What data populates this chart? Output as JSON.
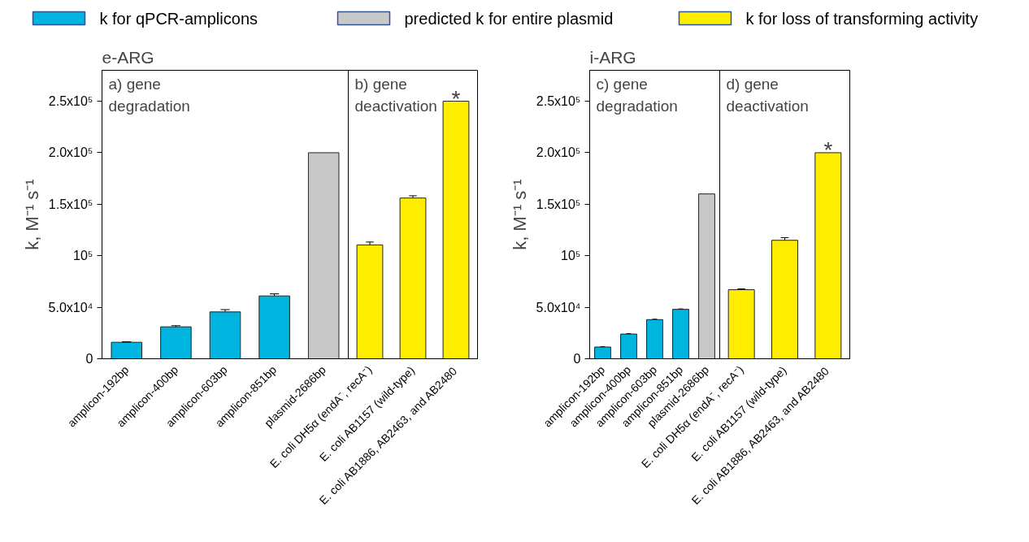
{
  "chart_data": [
    {
      "type": "bar",
      "title": "e-ARG",
      "ylabel": "k, M⁻¹ s⁻¹",
      "categories": [
        "amplicon-192bp",
        "amplicon-400bp",
        "amplicon-603bp",
        "amplicon-851bp",
        "plasmid-2686bp"
      ],
      "series": [
        {
          "name": "k for qPCR-amplicons",
          "color": "#00b4e0",
          "values": [
            16000,
            31000,
            45500,
            61000,
            null
          ],
          "errors": [
            500,
            1100,
            2200,
            2000,
            null
          ]
        },
        {
          "name": "predicted k for entire plasmid",
          "color": "#c8c8c8",
          "values": [
            null,
            null,
            null,
            null,
            200000
          ]
        }
      ],
      "ylim": [
        0,
        280000
      ],
      "yticks": [
        0,
        {
          "value": 50000,
          "label": "5.0x10⁴"
        },
        {
          "value": 100000,
          "label": "10⁵"
        },
        {
          "value": 150000,
          "label": "1.5x10⁵"
        },
        {
          "value": 200000,
          "label": "2.0x10⁵"
        },
        {
          "value": 250000,
          "label": "2.5x10⁵"
        }
      ],
      "annotations": [
        "a) gene degradation"
      ],
      "legend": "top",
      "grid": false
    },
    {
      "type": "bar",
      "categories": [
        "E. coli DH5α (endA⁻, recA⁻)",
        "E. coli AB1157 (wild-type)",
        "E. coli AB1886, AB2463, and AB2480"
      ],
      "series": [
        {
          "name": "k for loss of transforming activity",
          "color": "#ffed00",
          "values": [
            110500,
            156000,
            250000
          ],
          "errors": [
            2800,
            2200,
            null
          ]
        }
      ],
      "ylim": [
        0,
        280000
      ],
      "tick_labels": "x",
      "annotations": [
        "b) gene deactivation",
        {
          "text": "*",
          "x": "E. coli AB1886, AB2463, and AB2480",
          "y": 250000
        }
      ],
      "legend": "top"
    },
    {
      "type": "bar",
      "title": "i-ARG",
      "ylabel": "k, M⁻¹ s⁻¹",
      "categories": [
        "amplicon-192bp",
        "amplicon-400bp",
        "amplicon-603bp",
        "amplicon-851bp",
        "plasmid-2686bp"
      ],
      "series": [
        {
          "color": "#00b4e0",
          "values": [
            11400,
            24000,
            38000,
            48000,
            null
          ],
          "errors": [
            300,
            400,
            400,
            400,
            null
          ]
        },
        {
          "color": "#c8c8c8",
          "values": [
            null,
            null,
            null,
            null,
            160000
          ]
        }
      ],
      "ylim": [
        0,
        280000
      ],
      "yticks": [
        0,
        {
          "value": 50000,
          "label": "5.0x10⁴"
        },
        {
          "value": 100000,
          "label": "10⁵"
        },
        {
          "value": 150000,
          "label": "1.5x10⁵"
        },
        {
          "value": 200000,
          "label": "2.0x10⁵"
        },
        {
          "value": 250000,
          "label": "2.5x10⁵"
        }
      ],
      "annotations": [
        "c) gene degradation"
      ],
      "grid": false
    },
    {
      "type": "bar",
      "categories": [
        "E. coli DH5α (endA⁻, recA⁻)",
        "E. coli AB1157 (wild-type)",
        "E. coli AB1886, AB2463, and AB2480"
      ],
      "series": [
        {
          "color": "#ffed00",
          "values": [
            67000,
            115000,
            200000
          ],
          "errors": [
            800,
            2500,
            null
          ]
        }
      ],
      "ylim": [
        0,
        280000
      ],
      "tick_labels": "x",
      "annotations": [
        "d) gene deactivation",
        {
          "text": "*",
          "x": "E. coli AB1886, AB2463, and AB2480",
          "y": 200000
        }
      ]
    }
  ]
}
